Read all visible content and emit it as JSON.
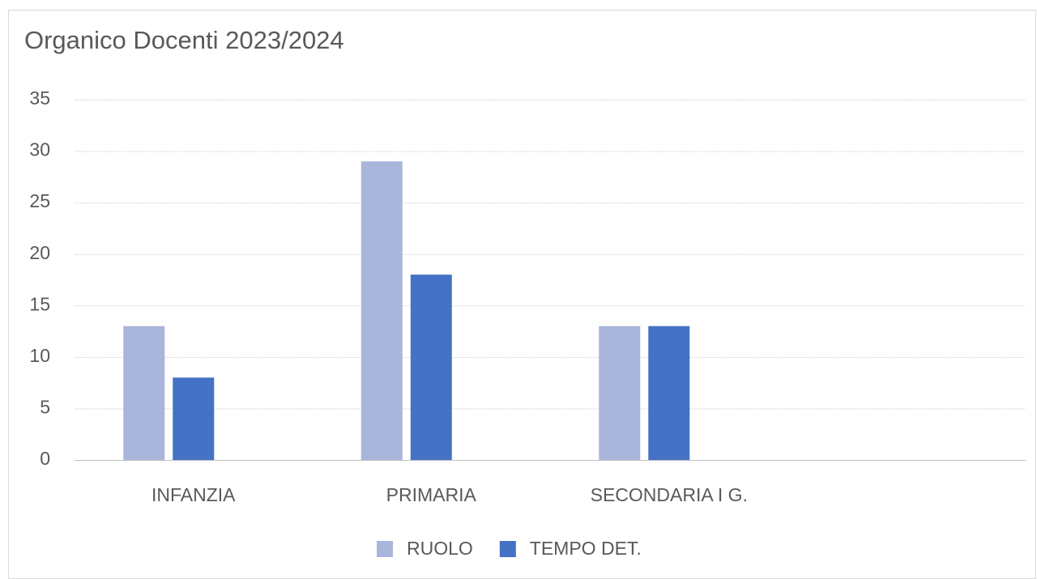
{
  "chart_data": {
    "type": "bar",
    "title": "Organico Docenti 2023/2024",
    "categories": [
      "INFANZIA",
      "PRIMARIA",
      "SECONDARIA I G.",
      null
    ],
    "series": [
      {
        "name": "RUOLO",
        "color": "#a9b5da",
        "values": [
          13,
          29,
          13,
          null
        ]
      },
      {
        "name": "TEMPO DET.",
        "color": "#4472c4",
        "values": [
          8,
          18,
          13,
          null
        ]
      }
    ],
    "ylim": [
      0,
      35
    ],
    "yticks": [
      0,
      5,
      10,
      15,
      20,
      25,
      30,
      35
    ],
    "grid": true,
    "legend": "bottom"
  }
}
